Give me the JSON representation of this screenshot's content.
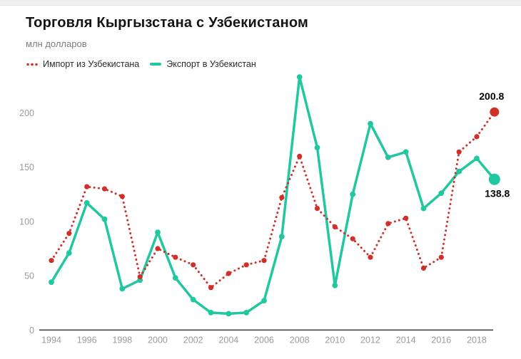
{
  "page": {
    "title": "Торговля Кыргызстана с Узбекистаном",
    "subtitle": "млн долларов"
  },
  "legend": [
    {
      "label": "Импорт из Узбекистана",
      "color": "#d0302a",
      "style": "dotted"
    },
    {
      "label": "Экспорт в Узбекистан",
      "color": "#20c79f",
      "style": "solid"
    }
  ],
  "chart_data": {
    "type": "line",
    "title": "Торговля Кыргызстана с Узбекистаном",
    "xlabel": "",
    "ylabel": "млн долларов",
    "x": [
      1994,
      1995,
      1996,
      1997,
      1998,
      1999,
      2000,
      2001,
      2002,
      2003,
      2004,
      2005,
      2006,
      2007,
      2008,
      2009,
      2010,
      2011,
      2012,
      2013,
      2014,
      2015,
      2016,
      2017,
      2018,
      2019
    ],
    "series": [
      {
        "name": "Импорт из Узбекистана",
        "color": "#d0302a",
        "line_style": "dotted",
        "marker": "circle",
        "values": [
          64,
          89,
          132,
          130,
          123,
          49,
          75,
          67,
          60,
          39,
          52,
          60,
          64,
          122,
          160,
          112,
          95,
          84,
          67,
          98,
          103,
          57,
          67,
          164,
          178,
          200.8
        ],
        "end_label": "200.8"
      },
      {
        "name": "Экспорт в Узбекистан",
        "color": "#20c79f",
        "line_style": "solid",
        "marker": "circle",
        "values": [
          44,
          71,
          117,
          102,
          38,
          46,
          90,
          48,
          28,
          16,
          15,
          16,
          27,
          86,
          233,
          168,
          41,
          125,
          190,
          159,
          164,
          112,
          126,
          146,
          158,
          138.8
        ],
        "end_label": "138.8"
      }
    ],
    "x_ticks": [
      1994,
      1996,
      1998,
      2000,
      2002,
      2004,
      2006,
      2008,
      2010,
      2012,
      2014,
      2016,
      2018
    ],
    "y_ticks": [
      0,
      50,
      100,
      150,
      200
    ],
    "xlim": [
      1994,
      2019
    ],
    "ylim": [
      0,
      240
    ],
    "grid": false,
    "legend_position": "top-left"
  }
}
